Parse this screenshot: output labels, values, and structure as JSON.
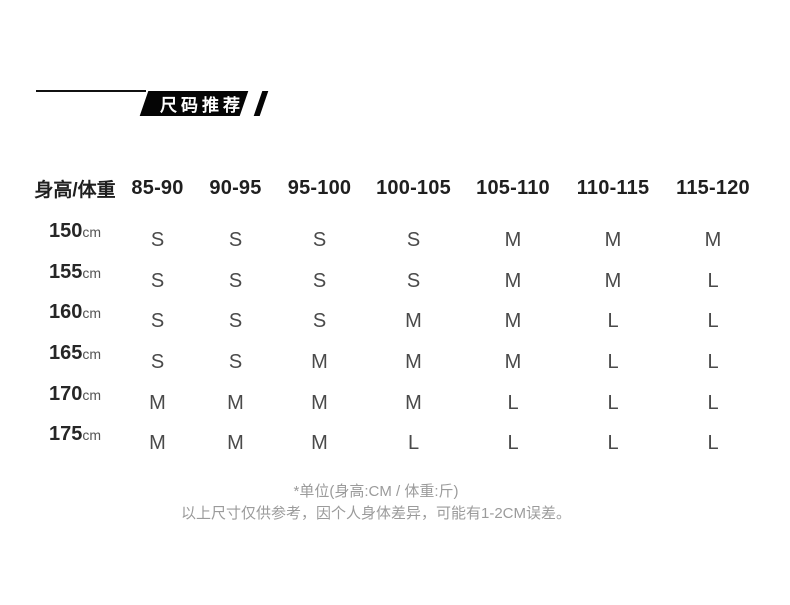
{
  "banner": {
    "title": "尺码推荐"
  },
  "chart_data": {
    "type": "table",
    "title": "尺码推荐",
    "corner_header": "身高/体重",
    "columns": [
      "85-90",
      "90-95",
      "95-100",
      "100-105",
      "105-110",
      "110-115",
      "115-120"
    ],
    "rows": [
      {
        "height": "150",
        "unit": "cm",
        "sizes": [
          "S",
          "S",
          "S",
          "S",
          "M",
          "M",
          "M"
        ]
      },
      {
        "height": "155",
        "unit": "cm",
        "sizes": [
          "S",
          "S",
          "S",
          "S",
          "M",
          "M",
          "L"
        ]
      },
      {
        "height": "160",
        "unit": "cm",
        "sizes": [
          "S",
          "S",
          "S",
          "M",
          "M",
          "L",
          "L"
        ]
      },
      {
        "height": "165",
        "unit": "cm",
        "sizes": [
          "S",
          "S",
          "M",
          "M",
          "M",
          "L",
          "L"
        ]
      },
      {
        "height": "170",
        "unit": "cm",
        "sizes": [
          "M",
          "M",
          "M",
          "M",
          "L",
          "L",
          "L"
        ]
      },
      {
        "height": "175",
        "unit": "cm",
        "sizes": [
          "M",
          "M",
          "M",
          "L",
          "L",
          "L",
          "L"
        ]
      }
    ],
    "layout": {
      "row_unit_suffix": "cm",
      "height_unit": "CM",
      "weight_unit": "斤"
    }
  },
  "footnotes": {
    "line1": "*单位(身高:CM / 体重:斤)",
    "line2": "以上尺寸仅供参考，因个人身体差异，可能有1-2CM误差。"
  },
  "colors": {
    "banner_bg": "#050505",
    "banner_text": "#ffffff",
    "accent_line": "#111111",
    "header_text": "#1f1f1f",
    "size_text": "#4a4a4a",
    "unit_text": "#555555",
    "footnote_text": "#9b9b9b",
    "background": "#ffffff"
  }
}
